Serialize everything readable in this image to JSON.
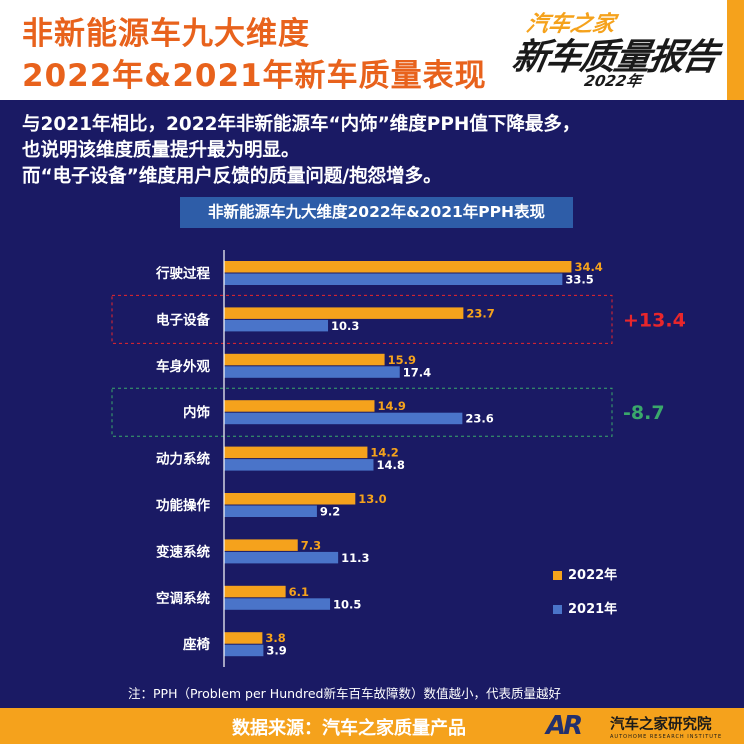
{
  "header": {
    "title_line1": "非新能源车九大维度",
    "title_line2": "2022年&2021年新车质量表现"
  },
  "logo": {
    "brand": "汽车之家",
    "report": "新车质量报告",
    "year": "2022年"
  },
  "intro": {
    "line1": "与2021年相比，2022年非新能源车“内饰”维度PPH值下降最多，",
    "line2": "也说明该维度质量提升最为明显。",
    "line3": "而“电子设备”维度用户反馈的质量问题/抱怨增多。"
  },
  "chart_data": {
    "type": "bar",
    "orientation": "horizontal",
    "title": "非新能源车九大维度2022年&2021年PPH表现",
    "categories": [
      "行驶过程",
      "电子设备",
      "车身外观",
      "内饰",
      "动力系统",
      "功能操作",
      "变速系统",
      "空调系统",
      "座椅"
    ],
    "series": [
      {
        "name": "2022年",
        "color": "#f5a21c",
        "values": [
          34.4,
          23.7,
          15.9,
          14.9,
          14.2,
          13.0,
          7.3,
          6.1,
          3.8
        ],
        "labels": [
          "34.4",
          "23.7",
          "15.9",
          "14.9",
          "14.2",
          "13.0",
          "7.3",
          "6.1",
          "3.8"
        ]
      },
      {
        "name": "2021年",
        "color": "#4a74c9",
        "values": [
          33.5,
          10.3,
          17.4,
          23.6,
          14.8,
          9.2,
          11.3,
          10.5,
          3.9
        ],
        "labels": [
          "33.5",
          "10.3",
          "17.4",
          "23.6",
          "14.8",
          "9.2",
          "11.3",
          "10.5",
          "3.9"
        ]
      }
    ],
    "xlim": [
      0,
      35
    ],
    "legend_position": "bottom-right",
    "grid": false,
    "highlights": [
      {
        "category": "电子设备",
        "delta": "+13.4",
        "color": "#e8262b"
      },
      {
        "category": "内饰",
        "delta": "-8.7",
        "color": "#3aa86b"
      }
    ]
  },
  "note": "注：PPH（Problem per Hundred新车百车故障数）数值越小，代表质量越好",
  "footer": {
    "source": "数据来源：汽车之家质量产品",
    "ar_mark": "AR",
    "institute": "汽车之家研究院",
    "institute_en": "AUTOHOME RESEARCH INSTITUTE"
  }
}
